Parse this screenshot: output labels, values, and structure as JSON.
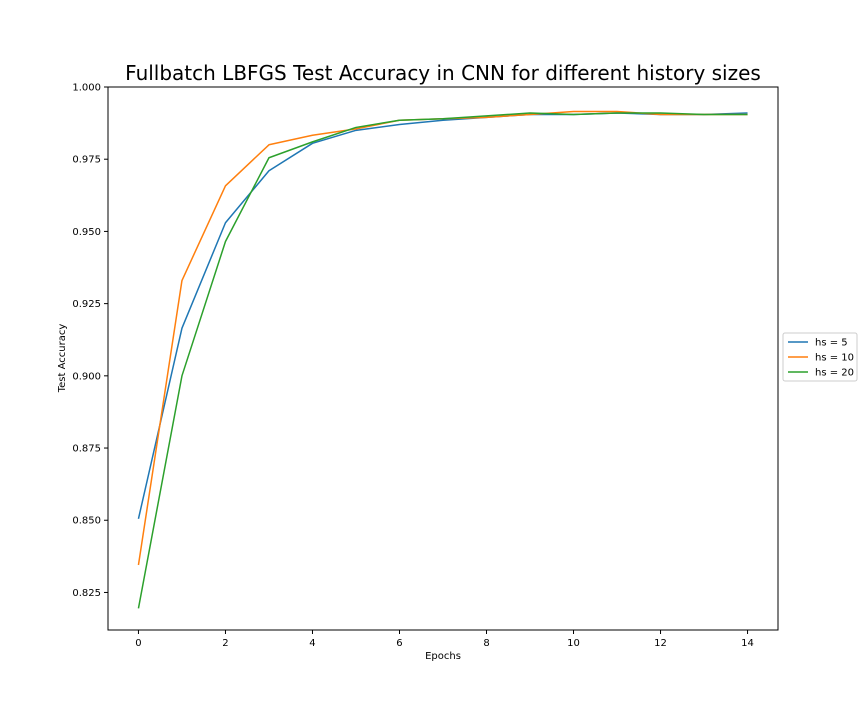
{
  "chart_data": {
    "type": "line",
    "title": "Fullbatch LBFGS Test Accuracy in CNN for different history sizes",
    "xlabel": "Epochs",
    "ylabel": "Test Accuracy",
    "xlim": [
      -0.7,
      14.7
    ],
    "ylim": [
      0.812,
      1.0
    ],
    "xticks": [
      0,
      2,
      4,
      6,
      8,
      10,
      12,
      14
    ],
    "yticks": [
      0.825,
      0.85,
      0.875,
      0.9,
      0.925,
      0.95,
      0.975,
      1.0
    ],
    "ytick_labels": [
      "0.825",
      "0.850",
      "0.875",
      "0.900",
      "0.925",
      "0.950",
      "0.975",
      "1.000"
    ],
    "grid": false,
    "legend_position": "outside-right",
    "x": [
      0,
      1,
      2,
      3,
      4,
      5,
      6,
      7,
      8,
      9,
      10,
      11,
      12,
      13,
      14
    ],
    "series": [
      {
        "name": "hs = 5",
        "color": "#1f77b4",
        "values": [
          0.8505,
          0.9165,
          0.953,
          0.971,
          0.9805,
          0.985,
          0.987,
          0.9885,
          0.9895,
          0.9905,
          0.9905,
          0.991,
          0.9905,
          0.9905,
          0.991
        ]
      },
      {
        "name": "hs = 10",
        "color": "#ff7f0e",
        "values": [
          0.8345,
          0.933,
          0.9658,
          0.98,
          0.9833,
          0.9855,
          0.9885,
          0.989,
          0.9895,
          0.9905,
          0.9915,
          0.9915,
          0.9905,
          0.9905,
          0.9905
        ]
      },
      {
        "name": "hs = 20",
        "color": "#2ca02c",
        "values": [
          0.8195,
          0.9,
          0.9465,
          0.9755,
          0.981,
          0.986,
          0.9885,
          0.989,
          0.99,
          0.991,
          0.9905,
          0.991,
          0.991,
          0.9905,
          0.9905
        ]
      }
    ]
  }
}
